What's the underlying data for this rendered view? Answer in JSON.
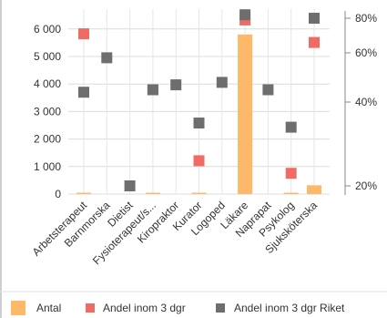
{
  "chart_data": {
    "type": "bar",
    "categories": [
      "Arbetsterapeut",
      "Barnmorska",
      "Dietist",
      "Fysioterapeut/s...",
      "Kiropraktor",
      "Kurator",
      "Logoped",
      "Läkare",
      "Naprapat",
      "Psykolog",
      "Sjuksköterska"
    ],
    "series": [
      {
        "name": "Antal",
        "type": "bar",
        "axis": "left",
        "color": "#FDB86A",
        "values": [
          20,
          0,
          0,
          20,
          0,
          20,
          0,
          5800,
          0,
          20,
          320
        ]
      },
      {
        "name": "Andel inom 3 dgr",
        "type": "scatter",
        "axis": "right",
        "color": "#F06B63",
        "marker": "square",
        "values": [
          71,
          null,
          null,
          45,
          null,
          26,
          null,
          79,
          null,
          23,
          66
        ]
      },
      {
        "name": "Andel inom 3 dgr Riket",
        "type": "scatter",
        "axis": "right",
        "color": "#6E6E6E",
        "marker": "square",
        "values": [
          44,
          58,
          20,
          45,
          47,
          35,
          48,
          82,
          45,
          34,
          80
        ]
      }
    ],
    "y_left": {
      "ticks": [
        0,
        1000,
        2000,
        3000,
        4000,
        5000,
        6000
      ],
      "tick_labels": [
        "0",
        "1 000",
        "2 000",
        "3 000",
        "4 000",
        "5 000",
        "6 000"
      ],
      "range": [
        0,
        6600
      ]
    },
    "y_right": {
      "ticks": [
        20,
        40,
        60,
        80
      ],
      "tick_labels": [
        "20%",
        "40%",
        "60%",
        "80%"
      ],
      "scale": "nonlinear"
    },
    "grid": true,
    "legend_position": "bottom"
  }
}
